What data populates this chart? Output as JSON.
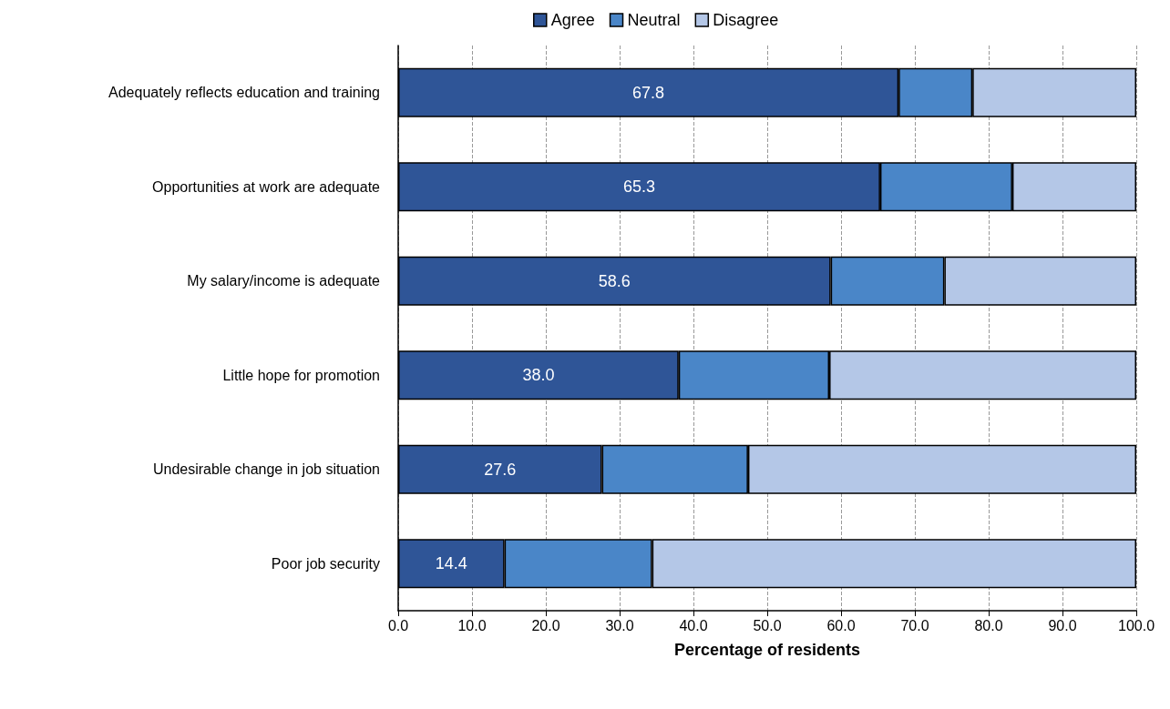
{
  "chart_data": {
    "type": "bar",
    "orientation": "horizontal",
    "stacked": true,
    "xlabel": "Percentage of residents",
    "categories": [
      "Adequately reflects education and training",
      "Opportunities at work are adequate",
      "My salary/income is adequate",
      "Little hope for promotion",
      "Undesirable change in job situation",
      "Poor job security"
    ],
    "series": [
      {
        "name": "Agree",
        "color": "#2f5597",
        "values": [
          67.8,
          65.3,
          58.6,
          38.0,
          27.6,
          14.4
        ],
        "value_labels": [
          "67.8",
          "65.3",
          "58.6",
          "38.0",
          "27.6",
          "14.4"
        ]
      },
      {
        "name": "Neutral",
        "color": "#4a86c8",
        "values": [
          10.0,
          17.9,
          15.4,
          20.4,
          19.8,
          20.0
        ]
      },
      {
        "name": "Disagree",
        "color": "#b4c7e7",
        "values": [
          22.2,
          16.8,
          26.0,
          41.6,
          52.6,
          65.6
        ]
      }
    ],
    "xlim": [
      0,
      100
    ],
    "xticks": [
      {
        "value": 0,
        "label": "0.0"
      },
      {
        "value": 10,
        "label": "10.0"
      },
      {
        "value": 20,
        "label": "20.0"
      },
      {
        "value": 30,
        "label": "30.0"
      },
      {
        "value": 40,
        "label": "40.0"
      },
      {
        "value": 50,
        "label": "50.0"
      },
      {
        "value": 60,
        "label": "60.0"
      },
      {
        "value": 70,
        "label": "70.0"
      },
      {
        "value": 80,
        "label": "80.0"
      },
      {
        "value": 90,
        "label": "90.0"
      },
      {
        "value": 100,
        "label": "100.0"
      }
    ],
    "grid": "x",
    "legend": "top"
  }
}
